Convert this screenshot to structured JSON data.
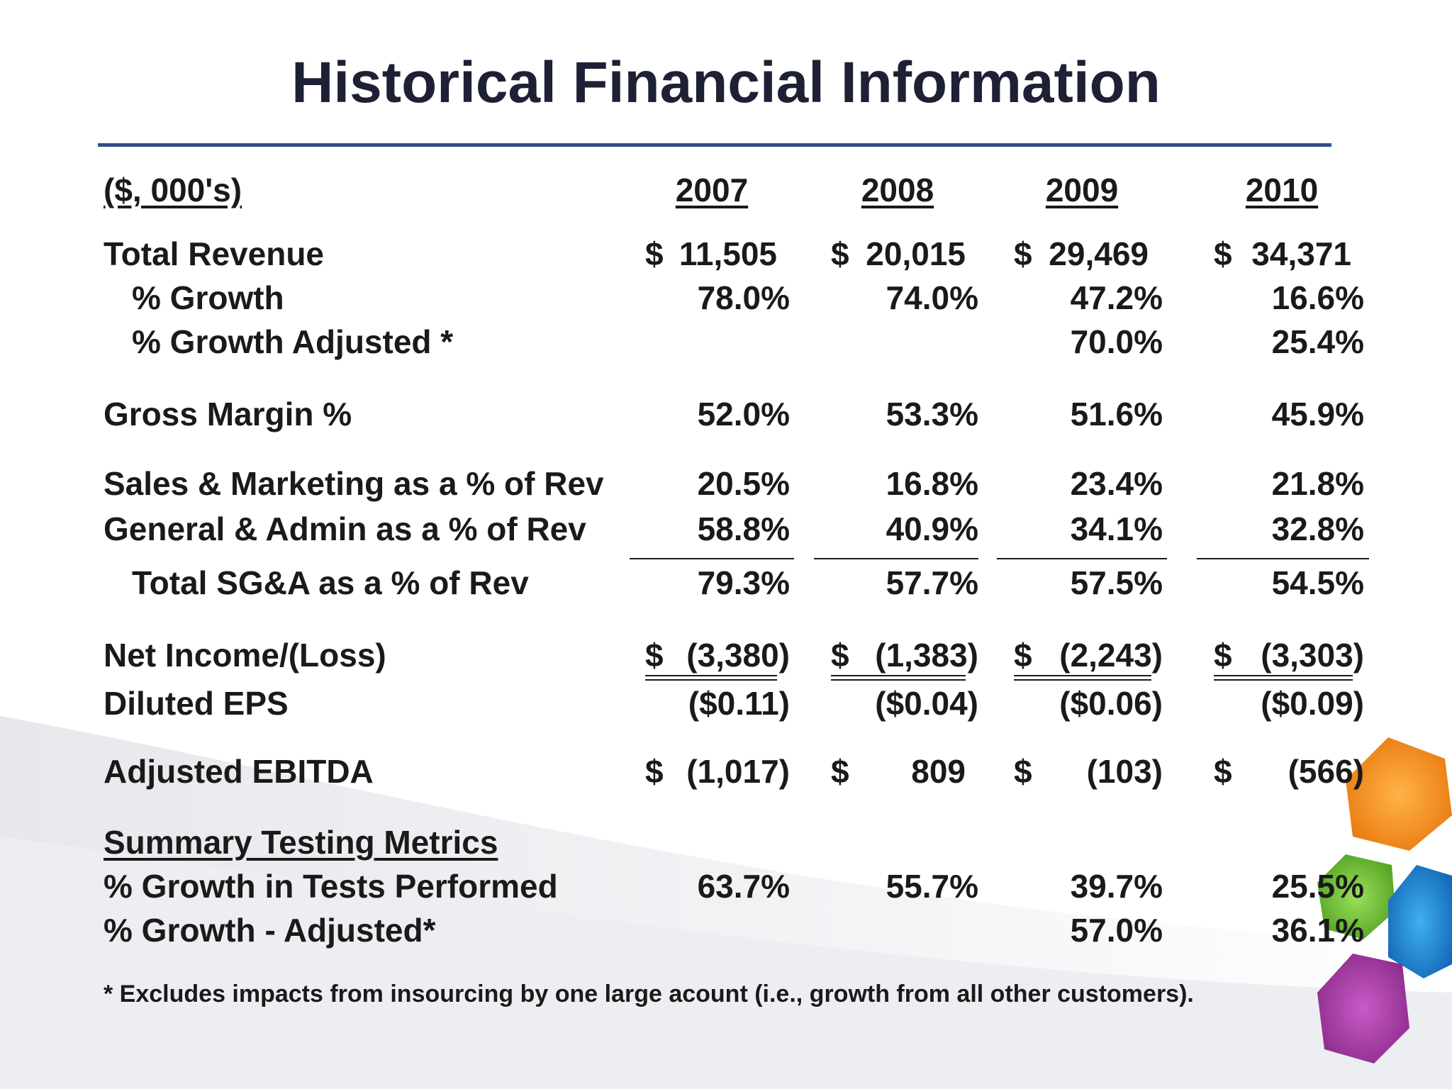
{
  "title": "Historical Financial Information",
  "header": {
    "units": "($, 000's)",
    "years": [
      "2007",
      "2008",
      "2009",
      "2010"
    ]
  },
  "rows": {
    "total_revenue": {
      "label": "Total Revenue",
      "dollar": "$",
      "values": [
        "11,505",
        "20,015",
        "29,469",
        "34,371"
      ]
    },
    "growth": {
      "label": "% Growth",
      "values": [
        "78.0%",
        "74.0%",
        "47.2%",
        "16.6%"
      ]
    },
    "growth_adjusted": {
      "label": "% Growth Adjusted *",
      "values": [
        "",
        "",
        "70.0%",
        "25.4%"
      ]
    },
    "gross_margin": {
      "label": "Gross Margin %",
      "values": [
        "52.0%",
        "53.3%",
        "51.6%",
        "45.9%"
      ]
    },
    "sales_marketing": {
      "label": "Sales & Marketing as a % of Rev",
      "values": [
        "20.5%",
        "16.8%",
        "23.4%",
        "21.8%"
      ]
    },
    "general_admin": {
      "label": "General & Admin as a % of Rev",
      "values": [
        "58.8%",
        "40.9%",
        "34.1%",
        "32.8%"
      ]
    },
    "total_sga": {
      "label": "Total SG&A as a % of Rev",
      "values": [
        "79.3%",
        "57.7%",
        "57.5%",
        "54.5%"
      ]
    },
    "net_income": {
      "label": "Net Income/(Loss)",
      "dollar": "$",
      "values": [
        "(3,380)",
        "(1,383)",
        "(2,243)",
        "(3,303)"
      ]
    },
    "diluted_eps": {
      "label": "Diluted EPS",
      "values": [
        "($0.11)",
        "($0.04)",
        "($0.06)",
        "($0.09)"
      ]
    },
    "adjusted_ebitda": {
      "label": "Adjusted EBITDA",
      "dollar": "$",
      "values": [
        "(1,017)",
        "809",
        "(103)",
        "(566)"
      ]
    }
  },
  "summary": {
    "heading": "Summary Testing Metrics",
    "tests_growth": {
      "label": "% Growth in Tests Performed",
      "values": [
        "63.7%",
        "55.7%",
        "39.7%",
        "25.5%"
      ]
    },
    "tests_growth_adjusted": {
      "label": "% Growth - Adjusted*",
      "values": [
        "",
        "",
        "57.0%",
        "36.1%"
      ]
    }
  },
  "footnote": "* Excludes impacts from insourcing by one large acount (i.e., growth from all other customers).",
  "colors": {
    "title": "#1e2035",
    "rule": "#2e4f86",
    "text": "#1a1a1a"
  }
}
